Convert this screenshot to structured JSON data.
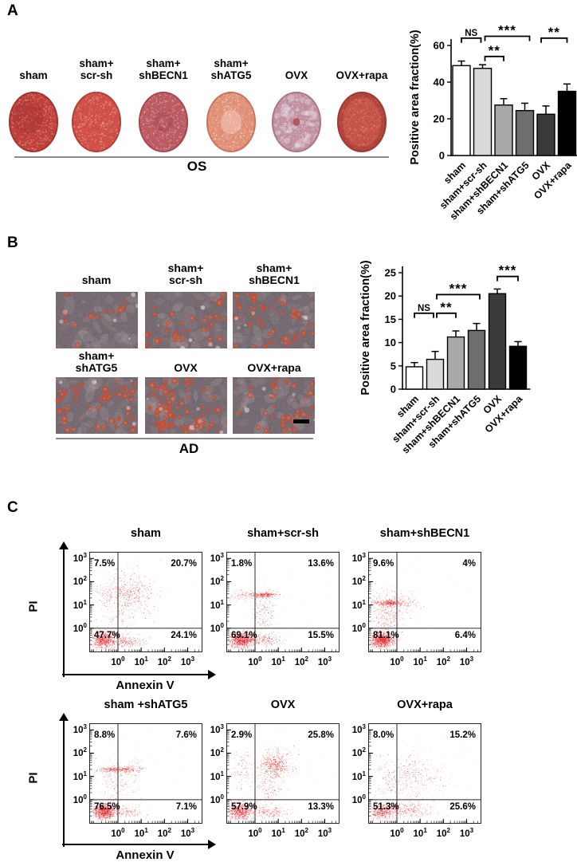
{
  "figure": {
    "background": "#ffffff",
    "panels": [
      {
        "label": "A",
        "stain_label": "OS",
        "groups": [
          "sham",
          "sham+scr-sh",
          "sham+shBECN1",
          "sham+shATG5",
          "OVX",
          "OVX+rapa"
        ],
        "group_label_lines": [
          [
            "sham"
          ],
          [
            "sham+",
            "scr-sh"
          ],
          [
            "sham+",
            "shBECN1"
          ],
          [
            "sham+",
            "shATG5"
          ],
          [
            "OVX"
          ],
          [
            "OVX+rapa"
          ]
        ],
        "dish_colors": [
          {
            "base": "#c0403c",
            "speckle": "#eaa49e",
            "dark": "#952c28",
            "feature": "dark-blob"
          },
          {
            "base": "#d05048",
            "speckle": "#f2b4aa",
            "dark": "#a83830",
            "feature": "none"
          },
          {
            "base": "#bb5a60",
            "speckle": "#e9c3c6",
            "dark": "#9c3d44",
            "feature": "dark-ring"
          },
          {
            "base": "#e29179",
            "speckle": "#f7d8ca",
            "dark": "#c06650",
            "feature": "light-center"
          },
          {
            "base": "#c392a2",
            "speckle": "#e6dce6",
            "dark": "#a06980",
            "feature": "red-dot"
          },
          {
            "base": "#c65349",
            "speckle": "#e09186",
            "dark": "#93302a",
            "feature": "dark-rim"
          }
        ]
      },
      {
        "label": "B",
        "stain_label": "AD",
        "group_label_lines": [
          [
            "sham"
          ],
          [
            "sham+",
            "scr-sh"
          ],
          [
            "sham+",
            "shBECN1"
          ],
          [
            "sham+",
            "shATG5"
          ],
          [
            "OVX"
          ],
          [
            "OVX+rapa"
          ]
        ],
        "micro": {
          "bg": "#766b72",
          "droplet": "#cf4a2e",
          "highlight": "#c8b6b4",
          "droplet_counts": [
            16,
            42,
            68,
            78,
            95,
            52
          ]
        },
        "has_scale_bar_on_last": true
      },
      {
        "label": "C"
      }
    ]
  },
  "chart_data": [
    {
      "id": "panel_a_quantification",
      "type": "bar",
      "title": "",
      "xlabel": "",
      "ylabel": "Positive area fraction(%)",
      "categories": [
        "sham",
        "sham+scr-sh",
        "sham+shBECN1",
        "sham+shATG5",
        "OVX",
        "OVX+rapa"
      ],
      "values": [
        49,
        47.5,
        27.5,
        24.5,
        22.5,
        35
      ],
      "errors": [
        2.5,
        2,
        3.5,
        4,
        4.5,
        4
      ],
      "bar_colors": [
        "#ffffff",
        "#dadada",
        "#a9a9a9",
        "#6e6e6e",
        "#3a3a3a",
        "#000000"
      ],
      "ylim": [
        0,
        60
      ],
      "yticks": [
        0,
        20,
        40,
        60
      ],
      "grid": false,
      "legend": null,
      "significance": [
        {
          "a": 0,
          "b": 1,
          "label": "NS",
          "y": 64
        },
        {
          "a": 1,
          "b": 2,
          "label": "**",
          "y": 54
        },
        {
          "a": 1,
          "b": 3,
          "label": "***",
          "y": 65
        },
        {
          "a": 4,
          "b": 5,
          "label": "**",
          "y": 64
        }
      ]
    },
    {
      "id": "panel_b_quantification",
      "type": "bar",
      "title": "",
      "xlabel": "",
      "ylabel": "Positive area fraction(%)",
      "categories": [
        "sham",
        "sham+scr-sh",
        "sham+shBECN1",
        "sham+shATG5",
        "OVX",
        "OVX+rapa"
      ],
      "values": [
        4.8,
        6.4,
        11.2,
        12.6,
        20.5,
        9.2
      ],
      "errors": [
        0.9,
        1.7,
        1.3,
        1.5,
        1.0,
        1.0
      ],
      "bar_colors": [
        "#ffffff",
        "#dadada",
        "#a9a9a9",
        "#6e6e6e",
        "#3a3a3a",
        "#000000"
      ],
      "ylim": [
        0,
        25
      ],
      "yticks": [
        0,
        5,
        10,
        15,
        20,
        25
      ],
      "grid": false,
      "legend": null,
      "significance": [
        {
          "a": 0,
          "b": 1,
          "label": "NS",
          "y": 16.3
        },
        {
          "a": 1,
          "b": 2,
          "label": "**",
          "y": 16.3
        },
        {
          "a": 1,
          "b": 3,
          "label": "***",
          "y": 20.3
        },
        {
          "a": 4,
          "b": 5,
          "label": "***",
          "y": 24.2
        }
      ]
    },
    {
      "id": "apoptosis_flow_cytometry",
      "type": "scatter",
      "xlabel": "Annexin V",
      "ylabel": "PI",
      "tick_exponents": [
        0,
        1,
        2,
        3
      ],
      "x_log_range": [
        -1.2,
        3.6
      ],
      "y_log_range": [
        -1.0,
        3.25
      ],
      "gate_log": [
        0,
        0
      ],
      "point_color": "#e41a1c",
      "plots": [
        {
          "title": "sham",
          "quadrants": {
            "ul": "7.5%",
            "ur": "20.7%",
            "ll": "47.7%",
            "lr": "24.1%"
          },
          "clusters": [
            [
              -0.65,
              -0.5,
              0.22,
              0.16,
              600
            ],
            [
              0.25,
              -0.55,
              0.45,
              0.14,
              260
            ],
            [
              0.6,
              1.5,
              0.5,
              0.42,
              380
            ],
            [
              -0.5,
              1.55,
              0.28,
              0.25,
              90
            ],
            [
              0.1,
              0.55,
              0.5,
              0.45,
              90
            ]
          ]
        },
        {
          "title": "sham+scr-sh",
          "quadrants": {
            "ul": "1.8%",
            "ur": "13.6%",
            "ll": "69.1%",
            "lr": "15.5%"
          },
          "clusters": [
            [
              -0.6,
              -0.5,
              0.26,
              0.16,
              900
            ],
            [
              0.35,
              -0.5,
              0.35,
              0.13,
              200
            ],
            [
              0.35,
              1.45,
              0.3,
              0.06,
              260
            ],
            [
              0.35,
              0.8,
              0.22,
              0.5,
              160
            ],
            [
              -0.55,
              1.45,
              0.3,
              0.12,
              70
            ]
          ]
        },
        {
          "title": "sham+shBECN1",
          "quadrants": {
            "ul": "9.6%",
            "ur": "4%",
            "ll": "81.1%",
            "lr": "6.4%"
          },
          "clusters": [
            [
              -0.65,
              -0.5,
              0.26,
              0.16,
              1000
            ],
            [
              -0.35,
              1.1,
              0.38,
              0.06,
              300
            ],
            [
              -0.3,
              0.9,
              0.35,
              0.4,
              220
            ],
            [
              0.45,
              1.1,
              0.35,
              0.25,
              60
            ],
            [
              -0.6,
              0.2,
              0.3,
              0.4,
              80
            ]
          ]
        },
        {
          "title": "sham +shATG5",
          "quadrants": {
            "ul": "8.8%",
            "ur": "7.6%",
            "ll": "76.5%",
            "lr": "7.1%"
          },
          "clusters": [
            [
              -0.6,
              -0.5,
              0.24,
              0.16,
              900
            ],
            [
              -0.05,
              1.3,
              0.42,
              0.06,
              300
            ],
            [
              -0.1,
              0.7,
              0.4,
              0.45,
              130
            ],
            [
              0.3,
              -0.5,
              0.35,
              0.12,
              120
            ],
            [
              0.55,
              1.35,
              0.3,
              0.2,
              50
            ]
          ]
        },
        {
          "title": "OVX",
          "quadrants": {
            "ul": "2.9%",
            "ur": "25.8%",
            "ll": "57.9%",
            "lr": "13.3%"
          },
          "clusters": [
            [
              -0.65,
              -0.5,
              0.24,
              0.18,
              600
            ],
            [
              0.85,
              1.5,
              0.32,
              0.3,
              500
            ],
            [
              0.6,
              0.6,
              0.3,
              0.45,
              120
            ],
            [
              0.45,
              -0.5,
              0.5,
              0.14,
              220
            ],
            [
              -0.55,
              1.3,
              0.3,
              0.4,
              100
            ]
          ]
        },
        {
          "title": "OVX+rapa",
          "quadrants": {
            "ul": "8.0%",
            "ur": "15.2%",
            "ll": "51.3%",
            "lr": "25.6%"
          },
          "clusters": [
            [
              -0.65,
              -0.5,
              0.28,
              0.18,
              420
            ],
            [
              0.45,
              -0.45,
              0.55,
              0.16,
              280
            ],
            [
              0.7,
              1.05,
              0.6,
              0.4,
              260
            ],
            [
              -0.45,
              0.75,
              0.3,
              0.4,
              90
            ]
          ]
        }
      ]
    }
  ]
}
